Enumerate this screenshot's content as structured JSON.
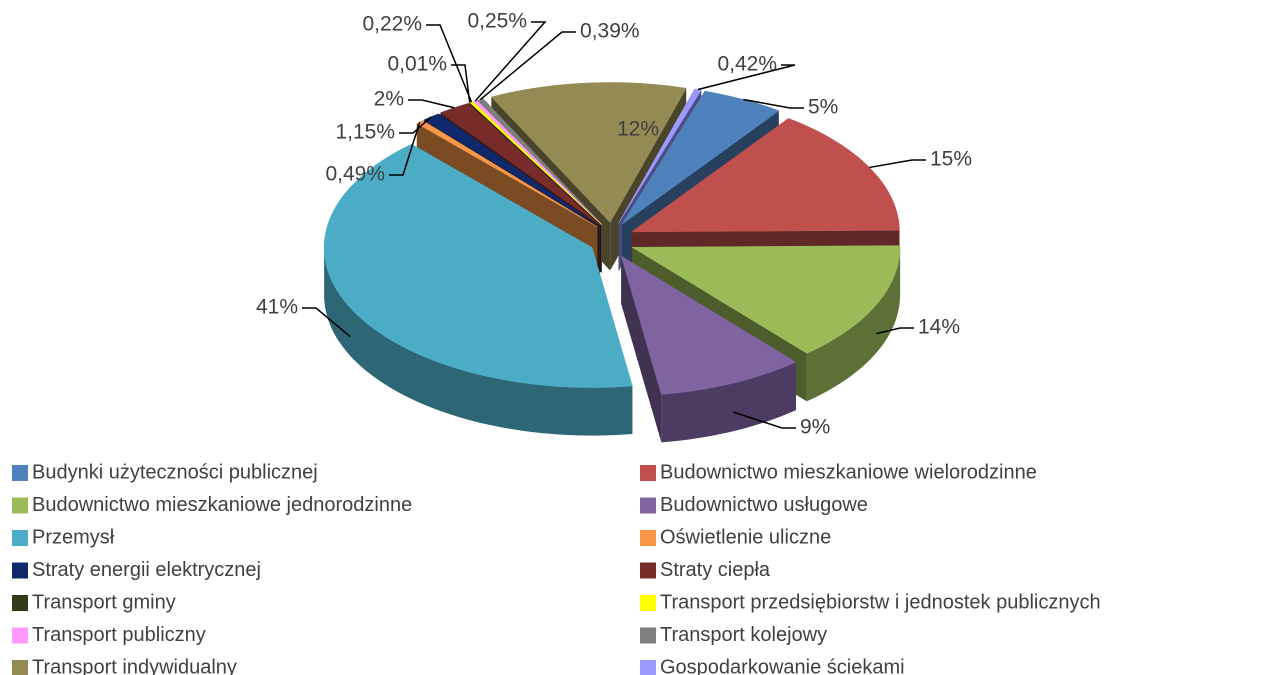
{
  "chart_data": {
    "type": "pie",
    "categories": [
      "Budynki użyteczności publicznej",
      "Budownictwo mieszkaniowe wielorodzinne",
      "Budownictwo mieszkaniowe jednorodzinne",
      "Budownictwo usługowe",
      "Przemysł",
      "Oświetlenie uliczne",
      "Straty energii elektrycznej",
      "Straty ciepła",
      "Transport gminy",
      "Transport przedsiębiorstw i jednostek publicznych",
      "Transport publiczny",
      "Transport kolejowy",
      "Transport indywidualny",
      "Gospodarkowanie ściekami"
    ],
    "values": [
      5,
      15,
      14,
      9,
      41,
      0.49,
      1.15,
      2,
      0.01,
      0.22,
      0.25,
      0.39,
      12,
      0.42
    ],
    "value_labels": [
      "5%",
      "15%",
      "14%",
      "9%",
      "41%",
      "0,49%",
      "1,15%",
      "2%",
      "0,01%",
      "0,22%",
      "0,25%",
      "0,39%",
      "12%",
      "0,42%"
    ],
    "colors": [
      "#4f81bd",
      "#c0504d",
      "#9bbb59",
      "#8064a2",
      "#4bacc6",
      "#f79646",
      "#10296b",
      "#772c2a",
      "#2f3b1a",
      "#ffff00",
      "#ff99ff",
      "#7f7f7f",
      "#948a54",
      "#9999ff"
    ],
    "legend": "bottom"
  }
}
